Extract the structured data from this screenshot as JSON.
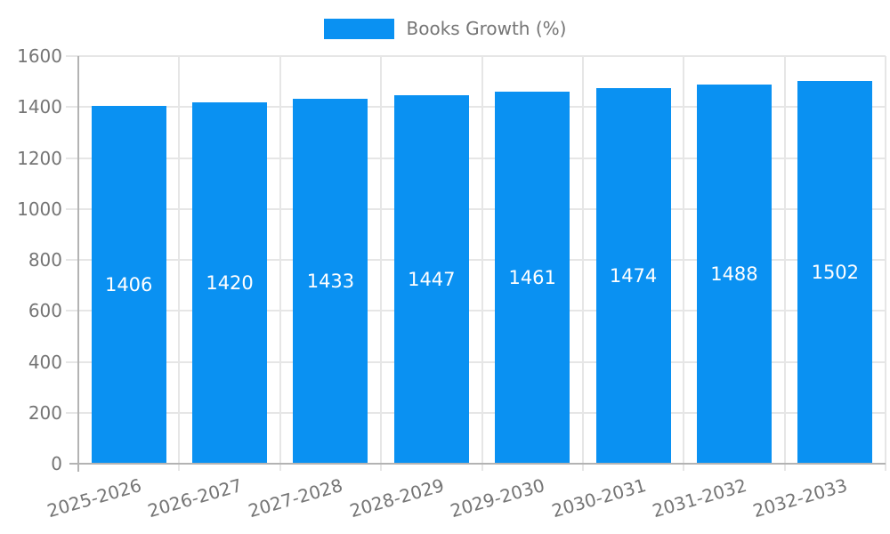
{
  "legend": {
    "label": "Books Growth (%)"
  },
  "colors": {
    "bar": "#0a91f2",
    "grid": "#e6e6e6",
    "axis": "#b3b3b3",
    "text": "#757575",
    "value_label": "#ffffff",
    "background": "#ffffff"
  },
  "chart_data": {
    "type": "bar",
    "title": "",
    "categories": [
      "2025-2026",
      "2026-2027",
      "2027-2028",
      "2028-2029",
      "2029-2030",
      "2030-2031",
      "2031-2032",
      "2032-2033"
    ],
    "series": [
      {
        "name": "Books Growth (%)",
        "values": [
          1406,
          1420,
          1433,
          1447,
          1461,
          1474,
          1488,
          1502
        ]
      }
    ],
    "bar_value_labels": [
      "1406",
      "1420",
      "1433",
      "1447",
      "1461",
      "1474",
      "1488",
      "1502"
    ],
    "xlabel": "",
    "ylabel": "",
    "ylim": [
      0,
      1600
    ],
    "yticks": [
      0,
      200,
      400,
      600,
      800,
      1000,
      1200,
      1400,
      1600
    ],
    "grid": true,
    "legend_position": "top",
    "value_labels_position": "inside-center",
    "xtick_rotation_deg": -16
  }
}
